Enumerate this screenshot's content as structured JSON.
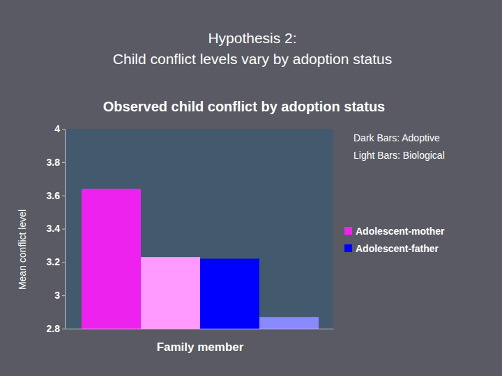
{
  "heading": [
    "Hypothesis 2:",
    "Child conflict levels vary by adoption status"
  ],
  "chart_data": {
    "type": "bar",
    "title": "Observed child conflict by adoption status",
    "x_label": "Family member",
    "y_label": "Mean conflict level",
    "annotations": [
      "Dark Bars: Adoptive",
      "Light Bars: Biological"
    ],
    "categories": [
      null,
      null
    ],
    "series": [
      {
        "name": "Adolescent-mother",
        "colors": [
          "#ee22ee",
          "#ff99ff"
        ],
        "values": [
          3.64,
          3.23
        ]
      },
      {
        "name": "Adolescent-father",
        "colors": [
          "#0000ff",
          "#8888ff"
        ],
        "values": [
          3.22,
          2.87
        ]
      }
    ],
    "ylim": [
      2.8,
      4
    ],
    "yticks": [
      2.8,
      3,
      3.2,
      3.4,
      3.6,
      3.8,
      4
    ],
    "grid": false,
    "legend": "right",
    "tick_labels": "y"
  }
}
